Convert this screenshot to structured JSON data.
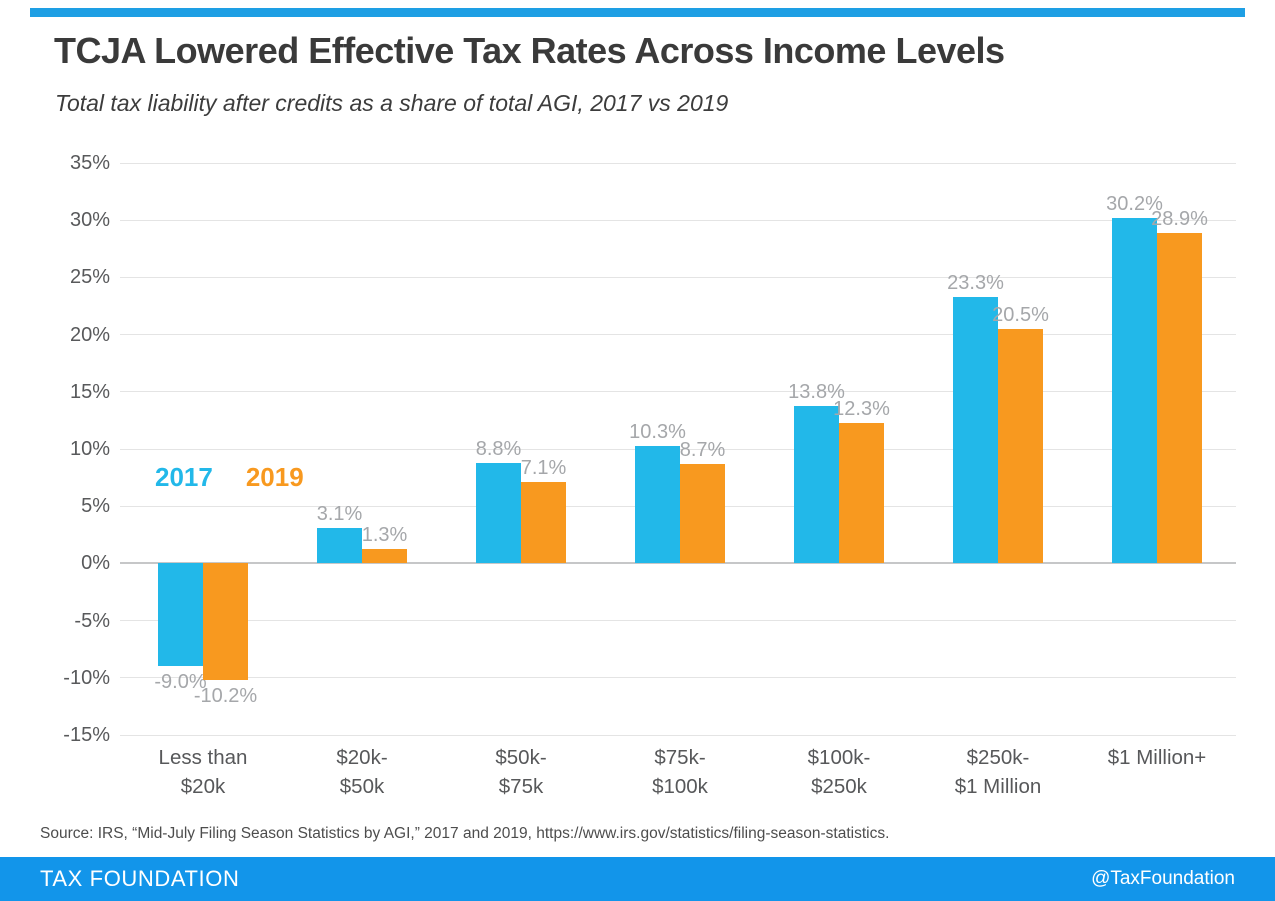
{
  "header": {
    "title": "TCJA Lowered Effective Tax Rates Across Income Levels",
    "subtitle": "Total tax liability after credits as a share of total AGI, 2017 vs 2019"
  },
  "chart_data": {
    "type": "bar",
    "title": "TCJA Lowered Effective Tax Rates Across Income Levels",
    "subtitle": "Total tax liability after credits as a share of total AGI, 2017 vs 2019",
    "categories": [
      "Less than\n$20k",
      "$20k-\n$50k",
      "$50k-\n$75k",
      "$75k-\n$100k",
      "$100k-\n$250k",
      "$250k-\n$1 Million",
      "$1 Million+"
    ],
    "series": [
      {
        "name": "2017",
        "color": "#22b8e9",
        "values": [
          -9.0,
          3.1,
          8.8,
          10.3,
          13.8,
          23.3,
          30.2
        ],
        "labels": [
          "-9.0%",
          "3.1%",
          "8.8%",
          "10.3%",
          "13.8%",
          "23.3%",
          "30.2%"
        ]
      },
      {
        "name": "2019",
        "color": "#f8991f",
        "values": [
          -10.2,
          1.3,
          7.1,
          8.7,
          12.3,
          20.5,
          28.9
        ],
        "labels": [
          "-10.2%",
          "1.3%",
          "7.1%",
          "8.7%",
          "12.3%",
          "20.5%",
          "28.9%"
        ]
      }
    ],
    "y_ticks": [
      "35%",
      "30%",
      "25%",
      "20%",
      "15%",
      "10%",
      "5%",
      "0%",
      "-5%",
      "-10%",
      "-15%"
    ],
    "y_tick_values": [
      35,
      30,
      25,
      20,
      15,
      10,
      5,
      0,
      -5,
      -10,
      -15
    ],
    "ylim": [
      -15,
      35
    ],
    "xlabel": "",
    "ylabel": "",
    "grid": true,
    "legend_position": "inside-left"
  },
  "footer": {
    "source": "Source: IRS, “Mid-July Filing Season Statistics by AGI,” 2017 and 2019, https://www.irs.gov/statistics/filing-season-statistics.",
    "brand": "TAX FOUNDATION",
    "handle": "@TaxFoundation"
  },
  "colors": {
    "accent_bar": "#1e9fe4",
    "footer_bar": "#1295ea",
    "series_2017": "#22b8e9",
    "series_2019": "#f8991f",
    "gridline": "#e4e4e4",
    "zero_line": "#c6c7c8",
    "tick_text": "#58595b",
    "value_label_text": "#a5a7aa"
  }
}
